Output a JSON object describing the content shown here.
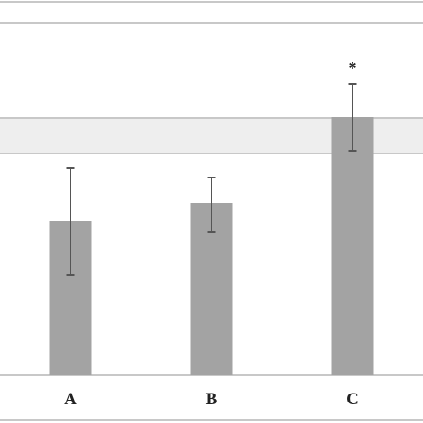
{
  "chart_data": {
    "type": "bar",
    "categories": [
      "A",
      "B",
      "C"
    ],
    "values": [
      172,
      192,
      289
    ],
    "error_low": [
      112,
      160,
      251
    ],
    "error_high": [
      232,
      221,
      326
    ],
    "annotations": [
      "",
      "",
      "*"
    ],
    "reference_band": [
      248,
      288
    ],
    "ylim": [
      0,
      420
    ],
    "grid": true,
    "bar_color": "#a3a3a3",
    "band_color": "#eeeeee",
    "line_color": "#c8c8c8",
    "error_color": "#555555",
    "title": "",
    "xlabel": "",
    "ylabel": ""
  }
}
